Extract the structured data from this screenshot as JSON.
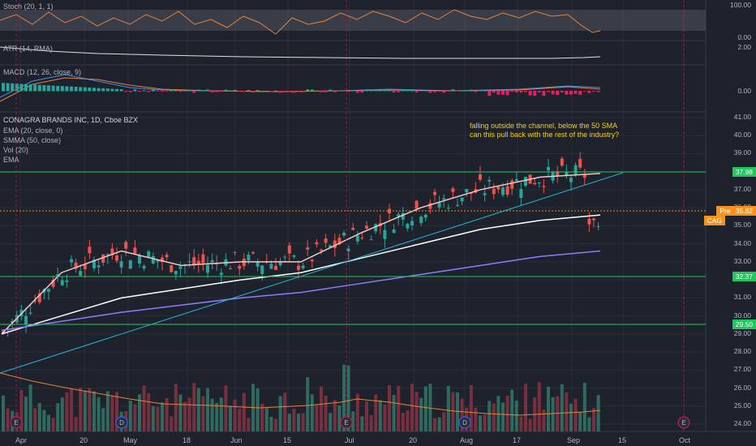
{
  "indicators": {
    "stoch": "Stoch (20, 1, 1)",
    "atr": "ATR (14, RMA)",
    "macd": "MACD (12, 26, close, 9)"
  },
  "main_legend": {
    "symbol": "CONAGRA BRANDS INC, 1D, Cboe BZX",
    "ema20": "EMA (20, close, 0)",
    "smma": "SMMA (50, close)",
    "vol": "Vol (20)",
    "ema": "EMA"
  },
  "annotation": {
    "line1": "falling outside the channel, below the 50 SMA",
    "line2": "can this pull back with the rest of the industry?"
  },
  "stoch_axis": [
    "100.00",
    "0.00"
  ],
  "atr_axis": [
    "2.00"
  ],
  "macd_axis": [
    "0.00"
  ],
  "price_axis": [
    "41.00",
    "40.00",
    "39.00",
    "38.00",
    "37.00",
    "36.00",
    "35.00",
    "34.00",
    "33.00",
    "32.00",
    "31.00",
    "30.00",
    "29.00",
    "28.00",
    "27.00",
    "26.00",
    "25.00",
    "24.00"
  ],
  "price_tags": {
    "upper_level": "37.98",
    "current": "35.82",
    "current_prefix": "Pre",
    "symbol": "CAG",
    "mid_level": "32.37",
    "lower_level": "29.50"
  },
  "x_axis": [
    "Apr",
    "20",
    "May",
    "18",
    "Jun",
    "15",
    "Jul",
    "20",
    "Aug",
    "17",
    "Sep",
    "15",
    "Oct"
  ],
  "event_markers": [
    "E",
    "D",
    "E",
    "D",
    "E"
  ],
  "colors": {
    "background": "#1e222d",
    "up": "#26a69a",
    "down": "#ef5350",
    "level_line": "#22c55e",
    "ema20": "#f4c7c7",
    "smma50": "#ffffff",
    "ema_long": "#8b7dff",
    "trendline": "#29b6d6",
    "current_price": "#f7931a"
  },
  "chart_data": {
    "type": "line",
    "title": "CONAGRA BRANDS INC, 1D, Cboe BZX",
    "x": [
      "Apr",
      "20",
      "May",
      "18",
      "Jun",
      "15",
      "Jul",
      "20",
      "Aug",
      "17",
      "Sep"
    ],
    "series": [
      {
        "name": "EMA (20, close, 0)",
        "values": [
          29.0,
          32.4,
          33.6,
          32.8,
          33.0,
          33.0,
          34.6,
          36.0,
          37.0,
          37.7,
          37.9
        ]
      },
      {
        "name": "SMMA (50, close)",
        "values": [
          29.0,
          30.0,
          31.0,
          31.5,
          32.0,
          32.4,
          33.2,
          34.0,
          34.8,
          35.3,
          35.6
        ]
      },
      {
        "name": "EMA",
        "values": [
          29.2,
          29.7,
          30.2,
          30.6,
          31.0,
          31.3,
          31.8,
          32.3,
          32.8,
          33.3,
          33.6
        ]
      }
    ],
    "levels": [
      37.98,
      32.37,
      29.5
    ],
    "current_price": 35.82,
    "ylim": [
      23.5,
      41.5
    ]
  }
}
